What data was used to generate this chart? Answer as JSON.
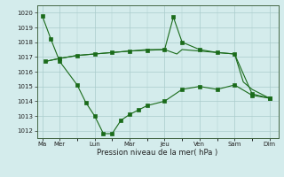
{
  "background_color": "#d4ecec",
  "grid_color": "#aacccc",
  "line_color": "#1a6b1a",
  "xlabel": "Pression niveau de la mer( hPa )",
  "ylim": [
    1011.5,
    1020.5
  ],
  "yticks": [
    1012,
    1013,
    1014,
    1015,
    1016,
    1017,
    1018,
    1019,
    1020
  ],
  "day_labels": [
    "Ma",
    "Mer",
    "Lun",
    "Mar",
    "Jeu",
    "Ven",
    "Sam",
    "Dim"
  ],
  "day_positions": [
    0,
    1,
    3,
    5,
    7,
    9,
    11,
    13
  ],
  "series1_x": [
    0,
    0.5,
    1,
    2,
    2.5,
    3,
    3.5,
    4,
    4.5,
    5,
    5.5,
    6,
    7,
    8,
    9,
    10,
    11,
    12,
    13
  ],
  "series1_y": [
    1019.8,
    1018.2,
    1016.7,
    1015.1,
    1013.9,
    1013.0,
    1011.8,
    1011.8,
    1012.7,
    1013.1,
    1013.4,
    1013.7,
    1014.0,
    1014.8,
    1015.0,
    1014.8,
    1015.1,
    1014.4,
    1014.2
  ],
  "series2_x": [
    0.2,
    1,
    2,
    3,
    4,
    5,
    6,
    7,
    7.5,
    8,
    9,
    10,
    11,
    12,
    13
  ],
  "series2_y": [
    1016.7,
    1016.9,
    1017.1,
    1017.2,
    1017.3,
    1017.4,
    1017.45,
    1017.5,
    1019.7,
    1018.0,
    1017.5,
    1017.3,
    1017.2,
    1014.5,
    1014.2
  ],
  "series3_x": [
    0.2,
    1,
    2,
    3,
    4,
    5,
    6,
    7,
    7.7,
    8,
    9,
    9.5,
    10,
    10.5,
    11,
    11.5,
    12,
    12.5,
    13
  ],
  "series3_y": [
    1016.7,
    1016.9,
    1017.1,
    1017.2,
    1017.3,
    1017.4,
    1017.5,
    1017.5,
    1017.2,
    1017.5,
    1017.4,
    1017.35,
    1017.3,
    1017.25,
    1017.2,
    1015.3,
    1014.8,
    1014.5,
    1014.2
  ]
}
